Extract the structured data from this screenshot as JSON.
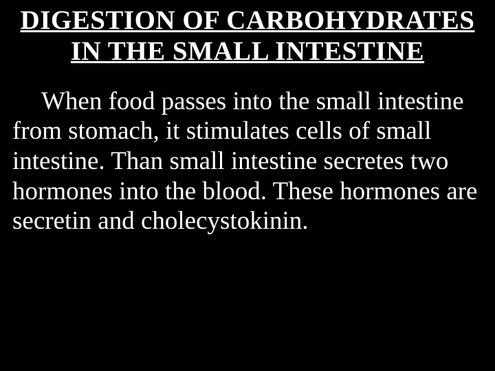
{
  "slide": {
    "title": "DIGESTION OF CARBOHYDRATES IN THE SMALL INTESTINE",
    "body": "When food passes into the small intestine from stomach, it stimulates cells of small intestine. Than  small intestine secretes two hormones into the blood. These hormones are secretin and cholecystokinin.",
    "background_color": "#000000",
    "text_color": "#ffffff",
    "title_fontsize": 39,
    "body_fontsize": 37,
    "font_family": "Times New Roman"
  }
}
